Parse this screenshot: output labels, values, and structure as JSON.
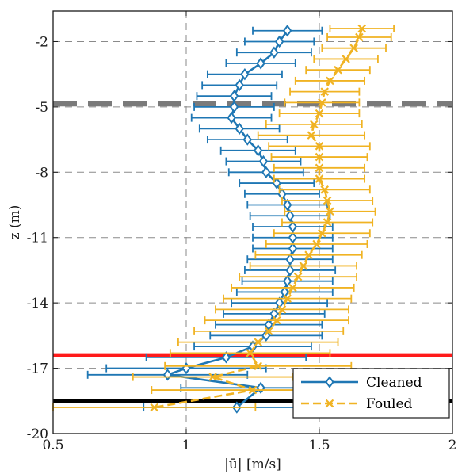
{
  "chart_data": {
    "type": "line",
    "xlabel": "|ū| [m/s]",
    "ylabel": "z (m)",
    "xlim": [
      0.5,
      2
    ],
    "ylim": [
      -20,
      -0.6
    ],
    "xticks": [
      0.5,
      1,
      1.5,
      2
    ],
    "xtick_labels": [
      "0.5",
      "1",
      "1.5",
      "2"
    ],
    "yticks": [
      -20,
      -17,
      -14,
      -11,
      -8,
      -5,
      -2
    ],
    "ytick_labels": [
      "-20",
      "-17",
      "-14",
      "-11",
      "-8",
      "-5",
      "-2"
    ],
    "grid": true,
    "legend_position": "bottom-right",
    "series": [
      {
        "name": "Cleaned",
        "color": "#1f77b4",
        "marker": "diamond",
        "line": "solid",
        "points": [
          {
            "z": -1.5,
            "u": 1.38,
            "err": 0.13
          },
          {
            "z": -2.0,
            "u": 1.35,
            "err": 0.13
          },
          {
            "z": -2.5,
            "u": 1.33,
            "err": 0.14
          },
          {
            "z": -3.0,
            "u": 1.28,
            "err": 0.13
          },
          {
            "z": -3.5,
            "u": 1.22,
            "err": 0.14
          },
          {
            "z": -4.0,
            "u": 1.2,
            "err": 0.14
          },
          {
            "z": -4.5,
            "u": 1.18,
            "err": 0.14
          },
          {
            "z": -5.0,
            "u": 1.18,
            "err": 0.15
          },
          {
            "z": -5.5,
            "u": 1.17,
            "err": 0.15
          },
          {
            "z": -6.0,
            "u": 1.2,
            "err": 0.15
          },
          {
            "z": -6.5,
            "u": 1.23,
            "err": 0.15
          },
          {
            "z": -7.0,
            "u": 1.27,
            "err": 0.14
          },
          {
            "z": -7.5,
            "u": 1.29,
            "err": 0.14
          },
          {
            "z": -8.0,
            "u": 1.3,
            "err": 0.14
          },
          {
            "z": -8.5,
            "u": 1.34,
            "err": 0.14
          },
          {
            "z": -9.0,
            "u": 1.36,
            "err": 0.14
          },
          {
            "z": -9.5,
            "u": 1.38,
            "err": 0.15
          },
          {
            "z": -10.0,
            "u": 1.39,
            "err": 0.15
          },
          {
            "z": -10.5,
            "u": 1.4,
            "err": 0.15
          },
          {
            "z": -11.0,
            "u": 1.4,
            "err": 0.15
          },
          {
            "z": -11.5,
            "u": 1.4,
            "err": 0.15
          },
          {
            "z": -12.0,
            "u": 1.39,
            "err": 0.16
          },
          {
            "z": -12.5,
            "u": 1.39,
            "err": 0.17
          },
          {
            "z": -13.0,
            "u": 1.38,
            "err": 0.17
          },
          {
            "z": -13.5,
            "u": 1.37,
            "err": 0.18
          },
          {
            "z": -14.0,
            "u": 1.35,
            "err": 0.18
          },
          {
            "z": -14.5,
            "u": 1.33,
            "err": 0.19
          },
          {
            "z": -15.0,
            "u": 1.31,
            "err": 0.2
          },
          {
            "z": -15.5,
            "u": 1.3,
            "err": 0.21
          },
          {
            "z": -16.0,
            "u": 1.25,
            "err": 0.22
          },
          {
            "z": -16.5,
            "u": 1.15,
            "err": 0.3
          },
          {
            "z": -17.0,
            "u": 1.0,
            "err": 0.3
          },
          {
            "z": -17.3,
            "u": 0.93,
            "err": 0.3
          },
          {
            "z": -17.9,
            "u": 1.28,
            "err": 0.3
          },
          {
            "z": -18.8,
            "u": 1.19,
            "err": 0.35
          }
        ]
      },
      {
        "name": "Fouled",
        "color": "#f0b323",
        "marker": "x",
        "line": "dashed",
        "points": [
          {
            "z": -1.4,
            "u": 1.66,
            "err": 0.12
          },
          {
            "z": -1.8,
            "u": 1.65,
            "err": 0.12
          },
          {
            "z": -2.3,
            "u": 1.63,
            "err": 0.12
          },
          {
            "z": -2.8,
            "u": 1.6,
            "err": 0.12
          },
          {
            "z": -3.3,
            "u": 1.57,
            "err": 0.12
          },
          {
            "z": -3.8,
            "u": 1.54,
            "err": 0.13
          },
          {
            "z": -4.3,
            "u": 1.52,
            "err": 0.13
          },
          {
            "z": -4.8,
            "u": 1.51,
            "err": 0.14
          },
          {
            "z": -5.3,
            "u": 1.5,
            "err": 0.15
          },
          {
            "z": -5.8,
            "u": 1.48,
            "err": 0.18
          },
          {
            "z": -6.3,
            "u": 1.47,
            "err": 0.2
          },
          {
            "z": -6.8,
            "u": 1.5,
            "err": 0.19
          },
          {
            "z": -7.3,
            "u": 1.5,
            "err": 0.18
          },
          {
            "z": -7.8,
            "u": 1.5,
            "err": 0.17
          },
          {
            "z": -8.3,
            "u": 1.5,
            "err": 0.17
          },
          {
            "z": -8.8,
            "u": 1.52,
            "err": 0.17
          },
          {
            "z": -9.3,
            "u": 1.53,
            "err": 0.17
          },
          {
            "z": -9.8,
            "u": 1.54,
            "err": 0.17
          },
          {
            "z": -10.3,
            "u": 1.53,
            "err": 0.17
          },
          {
            "z": -10.8,
            "u": 1.51,
            "err": 0.18
          },
          {
            "z": -11.3,
            "u": 1.49,
            "err": 0.19
          },
          {
            "z": -11.8,
            "u": 1.46,
            "err": 0.2
          },
          {
            "z": -12.3,
            "u": 1.44,
            "err": 0.2
          },
          {
            "z": -12.8,
            "u": 1.42,
            "err": 0.22
          },
          {
            "z": -13.3,
            "u": 1.4,
            "err": 0.23
          },
          {
            "z": -13.8,
            "u": 1.38,
            "err": 0.24
          },
          {
            "z": -14.3,
            "u": 1.36,
            "err": 0.25
          },
          {
            "z": -14.8,
            "u": 1.34,
            "err": 0.27
          },
          {
            "z": -15.3,
            "u": 1.31,
            "err": 0.28
          },
          {
            "z": -15.8,
            "u": 1.27,
            "err": 0.3
          },
          {
            "z": -16.3,
            "u": 1.24,
            "err": 0.3
          },
          {
            "z": -16.9,
            "u": 1.27,
            "err": 0.35
          },
          {
            "z": -17.4,
            "u": 1.1,
            "err": 0.3
          },
          {
            "z": -18.0,
            "u": 1.25,
            "err": 0.38
          },
          {
            "z": -18.8,
            "u": 0.88,
            "err": 0.38
          }
        ]
      }
    ],
    "reference_lines": [
      {
        "z": -4.85,
        "color": "#7a7a7a",
        "style": "dashed"
      },
      {
        "z": -16.4,
        "color": "#ff1a1a",
        "style": "solid"
      },
      {
        "z": -18.5,
        "color": "#000000",
        "style": "solid"
      }
    ]
  }
}
